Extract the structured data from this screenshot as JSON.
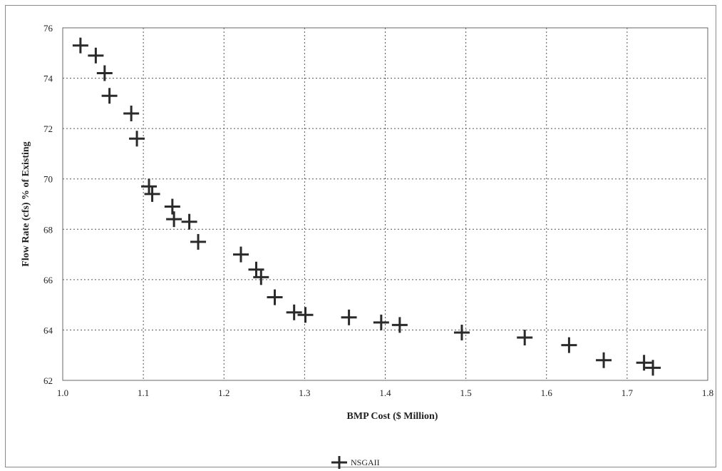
{
  "chart_data": {
    "type": "scatter",
    "title": "",
    "xlabel": "BMP Cost ($ Million)",
    "ylabel": "Flow Rate (cfs) % of Existing",
    "xlim": [
      1.0,
      1.8
    ],
    "ylim": [
      62,
      76
    ],
    "xticks": [
      "1.0",
      "1.1",
      "1.2",
      "1.3",
      "1.4",
      "1.5",
      "1.6",
      "1.7",
      "1.8"
    ],
    "yticks": [
      "62",
      "64",
      "66",
      "68",
      "70",
      "72",
      "74",
      "76"
    ],
    "grid": true,
    "legend_position": "bottom-center",
    "series": [
      {
        "name": "NSGAII",
        "marker": "plus",
        "color": "#2a2a2a",
        "points": [
          {
            "x": 1.022,
            "y": 75.3
          },
          {
            "x": 1.041,
            "y": 74.9
          },
          {
            "x": 1.052,
            "y": 74.2
          },
          {
            "x": 1.058,
            "y": 73.3
          },
          {
            "x": 1.085,
            "y": 72.6
          },
          {
            "x": 1.092,
            "y": 71.6
          },
          {
            "x": 1.107,
            "y": 69.7
          },
          {
            "x": 1.111,
            "y": 69.4
          },
          {
            "x": 1.136,
            "y": 68.9
          },
          {
            "x": 1.138,
            "y": 68.4
          },
          {
            "x": 1.157,
            "y": 68.3
          },
          {
            "x": 1.168,
            "y": 67.5
          },
          {
            "x": 1.221,
            "y": 67.0
          },
          {
            "x": 1.24,
            "y": 66.4
          },
          {
            "x": 1.246,
            "y": 66.1
          },
          {
            "x": 1.263,
            "y": 65.3
          },
          {
            "x": 1.287,
            "y": 64.7
          },
          {
            "x": 1.301,
            "y": 64.6
          },
          {
            "x": 1.355,
            "y": 64.5
          },
          {
            "x": 1.395,
            "y": 64.3
          },
          {
            "x": 1.418,
            "y": 64.2
          },
          {
            "x": 1.495,
            "y": 63.9
          },
          {
            "x": 1.573,
            "y": 63.7
          },
          {
            "x": 1.628,
            "y": 63.4
          },
          {
            "x": 1.671,
            "y": 62.8
          },
          {
            "x": 1.721,
            "y": 62.7
          },
          {
            "x": 1.732,
            "y": 62.5
          }
        ]
      }
    ]
  }
}
